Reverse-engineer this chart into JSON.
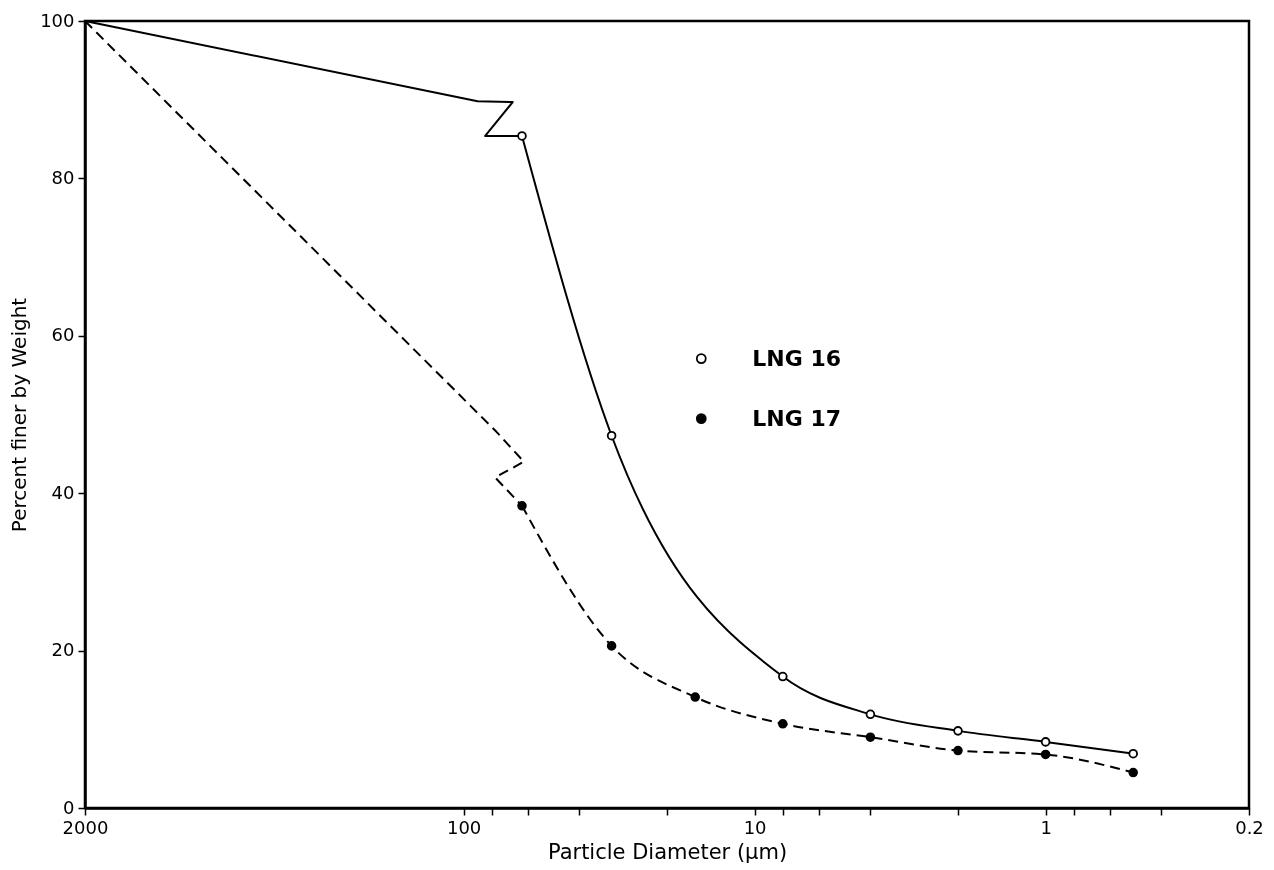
{
  "chart_data": {
    "type": "line",
    "xlabel": "Particle Diameter (μm)",
    "ylabel": "Percent finer by Weight",
    "log": "x",
    "xlim": [
      2000,
      0.2
    ],
    "xticks": [
      2000,
      100,
      {
        "value": 80,
        "label": null
      },
      {
        "value": 60,
        "label": null
      },
      {
        "value": 40,
        "label": null
      },
      {
        "value": 20,
        "label": null
      },
      10,
      {
        "value": 8,
        "label": null
      },
      {
        "value": 6,
        "label": null
      },
      {
        "value": 4,
        "label": null
      },
      {
        "value": 2,
        "label": null
      },
      1,
      {
        "value": 0.8,
        "label": null
      },
      {
        "value": 0.6,
        "label": null
      },
      {
        "value": 0.4,
        "label": null
      },
      0.2
    ],
    "ylim": [
      0,
      100
    ],
    "yticks": [
      0,
      20,
      40,
      60,
      80,
      100
    ],
    "grid": false,
    "legend": "right",
    "series": [
      {
        "name": "LNG 16",
        "color": "#000000",
        "colors": [
          "#ffffff",
          "#ffffff",
          "#ffffff",
          "#ffffff",
          "#ffffff",
          "#ffffff",
          "#ffffff"
        ],
        "marker": "circle",
        "line_style": "solid",
        "x": [
          63,
          31,
          8,
          4,
          2,
          1,
          0.5
        ],
        "values": [
          85.4,
          47.3,
          16.7,
          11.9,
          9.8,
          8.4,
          6.9
        ]
      },
      {
        "name": "LNG 17",
        "color": "#000000",
        "marker": "circle",
        "line_style": "dashed",
        "x": [
          63,
          31,
          16,
          8,
          4,
          2,
          1,
          0.5
        ],
        "values": [
          38.4,
          20.6,
          14.1,
          10.7,
          9.0,
          7.3,
          6.8,
          4.5
        ]
      },
      {
        "color": "#000000",
        "marker": "none",
        "line_style": "solid",
        "x": [
          2000,
          89.5,
          67.8,
          84.3,
          63
        ],
        "values": [
          100,
          89.8,
          89.7,
          85.4,
          85.4
        ]
      },
      {
        "color": "#000000",
        "marker": "none",
        "line_style": "dashed",
        "x": [
          2000,
          77.1,
          62.1,
          77.9,
          63
        ],
        "values": [
          100,
          47.8,
          44.0,
          42.0,
          38.4
        ]
      }
    ]
  }
}
